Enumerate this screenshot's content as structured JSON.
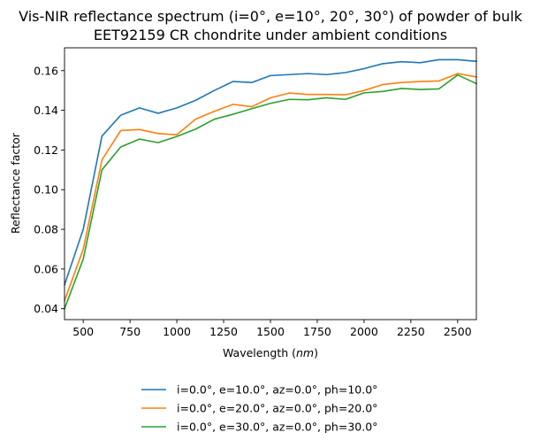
{
  "chart_data": {
    "type": "line",
    "title_line1": "Vis-NIR reflectance spectrum (i=0°, e=10°, 20°, 30°) of powder of bulk",
    "title_line2": "EET92159 CR chondrite under ambient conditions",
    "xlabel_prefix": "Wavelength (",
    "xlabel_unit": "nm",
    "xlabel_suffix": ")",
    "ylabel": "Reflectance factor",
    "xlim": [
      400,
      2600
    ],
    "ylim": [
      0.0345,
      0.1715
    ],
    "xticks": [
      500,
      750,
      1000,
      1250,
      1500,
      1750,
      2000,
      2250,
      2500
    ],
    "yticks": [
      0.04,
      0.06,
      0.08,
      0.1,
      0.12,
      0.14,
      0.16
    ],
    "xtick_labels": [
      "500",
      "750",
      "1000",
      "1250",
      "1500",
      "1750",
      "2000",
      "2250",
      "2500"
    ],
    "ytick_labels": [
      "0.04",
      "0.06",
      "0.08",
      "0.10",
      "0.12",
      "0.14",
      "0.16"
    ],
    "legend_placement": "below-center",
    "grid": false,
    "x": [
      400,
      500,
      600,
      700,
      800,
      900,
      1000,
      1100,
      1200,
      1300,
      1400,
      1500,
      1600,
      1700,
      1800,
      1900,
      2000,
      2100,
      2200,
      2300,
      2400,
      2500,
      2600
    ],
    "series": [
      {
        "name": "i=0.0°, e=10.0°, az=0.0°, ph=10.0°",
        "color": "#1f77b4",
        "values": [
          0.052,
          0.08,
          0.127,
          0.1375,
          0.1412,
          0.1385,
          0.1412,
          0.145,
          0.15,
          0.1545,
          0.154,
          0.1575,
          0.158,
          0.1585,
          0.158,
          0.159,
          0.161,
          0.1635,
          0.1645,
          0.164,
          0.1655,
          0.1655,
          0.1647
        ]
      },
      {
        "name": "i=0.0°, e=20.0°, az=0.0°, ph=20.0°",
        "color": "#ff7f0e",
        "values": [
          0.044,
          0.07,
          0.115,
          0.1298,
          0.1303,
          0.1283,
          0.1277,
          0.1355,
          0.1395,
          0.143,
          0.1418,
          0.1463,
          0.1487,
          0.148,
          0.148,
          0.1478,
          0.15,
          0.153,
          0.154,
          0.1545,
          0.1548,
          0.1585,
          0.1568
        ]
      },
      {
        "name": "i=0.0°, e=30.0°, az=0.0°, ph=30.0°",
        "color": "#2ca02c",
        "values": [
          0.04,
          0.065,
          0.11,
          0.1215,
          0.1255,
          0.1237,
          0.1268,
          0.1305,
          0.1355,
          0.138,
          0.1408,
          0.1435,
          0.1455,
          0.1453,
          0.1463,
          0.1455,
          0.1488,
          0.1495,
          0.151,
          0.1505,
          0.1508,
          0.1578,
          0.1535
        ]
      }
    ]
  }
}
